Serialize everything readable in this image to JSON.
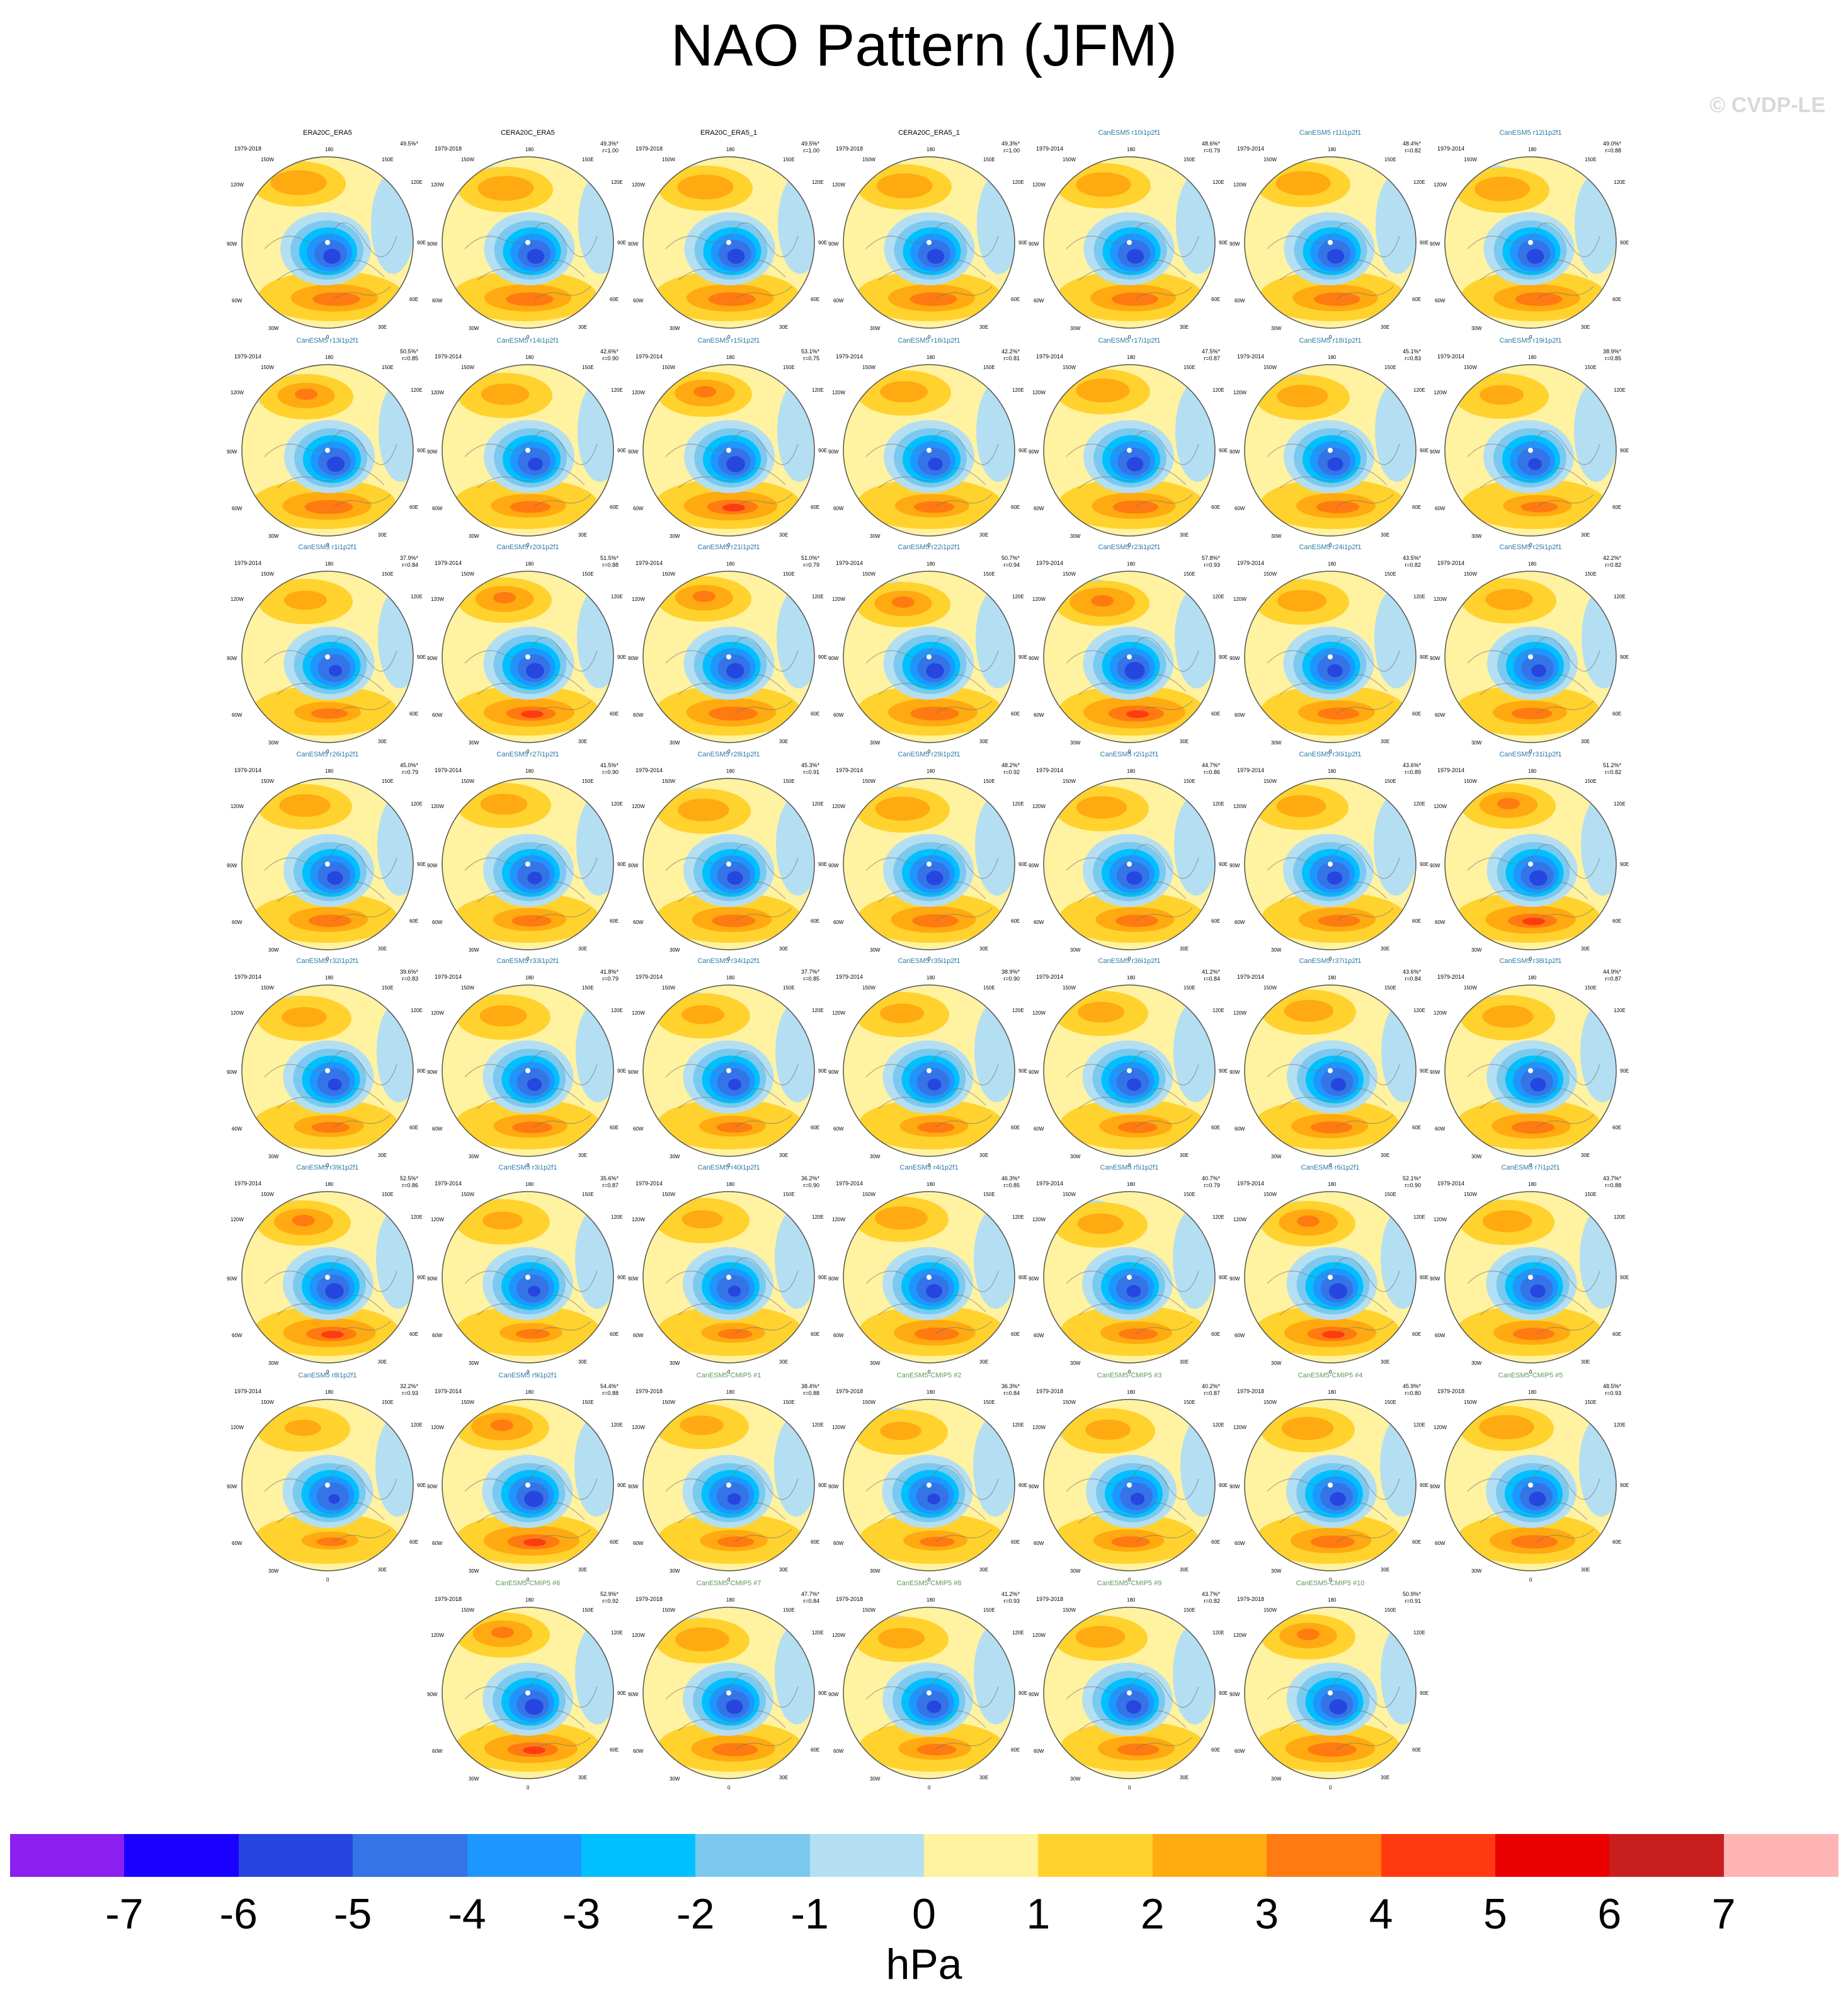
{
  "header": {
    "title": "NAO Pattern (JFM)",
    "watermark": "© CVDP-LE"
  },
  "colors": {
    "model_title": "#2a7aa6",
    "cmip_title": "#5a9a55",
    "obs_title": "#000000"
  },
  "chart_data": {
    "type": "heatmap",
    "title": "NAO Pattern (JFM)",
    "projection": "north polar stereographic",
    "lon_labels": [
      "180",
      "150E",
      "120E",
      "90E",
      "60E",
      "30E",
      "0",
      "30W",
      "60W",
      "90W",
      "120W",
      "150W"
    ],
    "colorbar": {
      "unit": "hPa",
      "ticks": [
        "-7",
        "-6",
        "-5",
        "-4",
        "-3",
        "-2",
        "-1",
        "0",
        "1",
        "2",
        "3",
        "4",
        "5",
        "6",
        "7"
      ],
      "colors": [
        "#8a1ff0",
        "#1a00ff",
        "#2646e0",
        "#3574e6",
        "#1e96ff",
        "#00c0ff",
        "#7cc9ef",
        "#b4dff2",
        "#fff2a0",
        "#ffd22e",
        "#ffaa10",
        "#ff7a10",
        "#ff3a10",
        "#ea0000",
        "#c81e1e",
        "#ffb4b4"
      ]
    },
    "panels": [
      {
        "title": "ERA20C_ERA5",
        "years": "1979-2018",
        "pct": "49.5%*",
        "r": "",
        "type": "obs"
      },
      {
        "title": "CERA20C_ERA5",
        "years": "1979-2018",
        "pct": "49.3%*",
        "r": "r=1.00",
        "type": "obs"
      },
      {
        "title": "ERA20C_ERA5_1",
        "years": "1979-2018",
        "pct": "49.5%*",
        "r": "r=1.00",
        "type": "obs"
      },
      {
        "title": "CERA20C_ERA5_1",
        "years": "1979-2018",
        "pct": "49.3%*",
        "r": "r=1.00",
        "type": "obs"
      },
      {
        "title": "CanESM5 r10i1p2f1",
        "years": "1979-2014",
        "pct": "48.6%*",
        "r": "r=0.79",
        "type": "model"
      },
      {
        "title": "CanESM5 r11i1p2f1",
        "years": "1979-2014",
        "pct": "48.4%*",
        "r": "r=0.82",
        "type": "model"
      },
      {
        "title": "CanESM5 r12i1p2f1",
        "years": "1979-2014",
        "pct": "49.0%*",
        "r": "r=0.88",
        "type": "model"
      },
      {
        "title": "CanESM5 r13i1p2f1",
        "years": "1979-2014",
        "pct": "50.5%*",
        "r": "r=0.85",
        "type": "model"
      },
      {
        "title": "CanESM5 r14i1p2f1",
        "years": "1979-2014",
        "pct": "42.6%*",
        "r": "r=0.90",
        "type": "model"
      },
      {
        "title": "CanESM5 r15i1p2f1",
        "years": "1979-2014",
        "pct": "53.1%*",
        "r": "r=0.75",
        "type": "model"
      },
      {
        "title": "CanESM5 r16i1p2f1",
        "years": "1979-2014",
        "pct": "42.2%*",
        "r": "r=0.81",
        "type": "model"
      },
      {
        "title": "CanESM5 r17i1p2f1",
        "years": "1979-2014",
        "pct": "47.5%*",
        "r": "r=0.87",
        "type": "model"
      },
      {
        "title": "CanESM5 r18i1p2f1",
        "years": "1979-2014",
        "pct": "45.1%*",
        "r": "r=0.83",
        "type": "model"
      },
      {
        "title": "CanESM5 r19i1p2f1",
        "years": "1979-2014",
        "pct": "38.9%*",
        "r": "r=0.85",
        "type": "model"
      },
      {
        "title": "CanESM5 r1i1p2f1",
        "years": "1979-2014",
        "pct": "37.9%*",
        "r": "r=0.84",
        "type": "model"
      },
      {
        "title": "CanESM5 r20i1p2f1",
        "years": "1979-2014",
        "pct": "51.5%*",
        "r": "r=0.88",
        "type": "model"
      },
      {
        "title": "CanESM5 r21i1p2f1",
        "years": "1979-2014",
        "pct": "51.0%*",
        "r": "r=0.79",
        "type": "model"
      },
      {
        "title": "CanESM5 r22i1p2f1",
        "years": "1979-2014",
        "pct": "50.7%*",
        "r": "r=0.94",
        "type": "model"
      },
      {
        "title": "CanESM5 r23i1p2f1",
        "years": "1979-2014",
        "pct": "57.8%*",
        "r": "r=0.93",
        "type": "model"
      },
      {
        "title": "CanESM5 r24i1p2f1",
        "years": "1979-2014",
        "pct": "43.5%*",
        "r": "r=0.82",
        "type": "model"
      },
      {
        "title": "CanESM5 r25i1p2f1",
        "years": "1979-2014",
        "pct": "42.2%*",
        "r": "r=0.82",
        "type": "model"
      },
      {
        "title": "CanESM5 r26i1p2f1",
        "years": "1979-2014",
        "pct": "45.0%*",
        "r": "r=0.79",
        "type": "model"
      },
      {
        "title": "CanESM5 r27i1p2f1",
        "years": "1979-2014",
        "pct": "41.5%*",
        "r": "r=0.90",
        "type": "model"
      },
      {
        "title": "CanESM5 r28i1p2f1",
        "years": "1979-2014",
        "pct": "45.3%*",
        "r": "r=0.91",
        "type": "model"
      },
      {
        "title": "CanESM5 r29i1p2f1",
        "years": "1979-2014",
        "pct": "48.2%*",
        "r": "r=0.92",
        "type": "model"
      },
      {
        "title": "CanESM5 r2i1p2f1",
        "years": "1979-2014",
        "pct": "44.7%*",
        "r": "r=0.86",
        "type": "model"
      },
      {
        "title": "CanESM5 r30i1p2f1",
        "years": "1979-2014",
        "pct": "43.6%*",
        "r": "r=0.89",
        "type": "model"
      },
      {
        "title": "CanESM5 r31i1p2f1",
        "years": "1979-2014",
        "pct": "51.2%*",
        "r": "r=0.82",
        "type": "model"
      },
      {
        "title": "CanESM5 r32i1p2f1",
        "years": "1979-2014",
        "pct": "39.6%*",
        "r": "r=0.83",
        "type": "model"
      },
      {
        "title": "CanESM5 r33i1p2f1",
        "years": "1979-2014",
        "pct": "41.8%*",
        "r": "r=0.79",
        "type": "model"
      },
      {
        "title": "CanESM5 r34i1p2f1",
        "years": "1979-2014",
        "pct": "37.7%*",
        "r": "r=0.85",
        "type": "model"
      },
      {
        "title": "CanESM5 r35i1p2f1",
        "years": "1979-2014",
        "pct": "38.9%*",
        "r": "r=0.90",
        "type": "model"
      },
      {
        "title": "CanESM5 r36i1p2f1",
        "years": "1979-2014",
        "pct": "41.2%*",
        "r": "r=0.84",
        "type": "model"
      },
      {
        "title": "CanESM5 r37i1p2f1",
        "years": "1979-2014",
        "pct": "43.6%*",
        "r": "r=0.84",
        "type": "model"
      },
      {
        "title": "CanESM5 r38i1p2f1",
        "years": "1979-2014",
        "pct": "44.9%*",
        "r": "r=0.87",
        "type": "model"
      },
      {
        "title": "CanESM5 r39i1p2f1",
        "years": "1979-2014",
        "pct": "52.5%*",
        "r": "r=0.86",
        "type": "model"
      },
      {
        "title": "CanESM5 r3i1p2f1",
        "years": "1979-2014",
        "pct": "35.6%*",
        "r": "r=0.87",
        "type": "model"
      },
      {
        "title": "CanESM5 r40i1p2f1",
        "years": "1979-2014",
        "pct": "36.2%*",
        "r": "r=0.90",
        "type": "model"
      },
      {
        "title": "CanESM5 r4i1p2f1",
        "years": "1979-2014",
        "pct": "46.3%*",
        "r": "r=0.85",
        "type": "model"
      },
      {
        "title": "CanESM5 r5i1p2f1",
        "years": "1979-2014",
        "pct": "40.7%*",
        "r": "r=0.79",
        "type": "model"
      },
      {
        "title": "CanESM5 r6i1p2f1",
        "years": "1979-2014",
        "pct": "52.1%*",
        "r": "r=0.90",
        "type": "model"
      },
      {
        "title": "CanESM5 r7i1p2f1",
        "years": "1979-2014",
        "pct": "43.7%*",
        "r": "r=0.88",
        "type": "model"
      },
      {
        "title": "CanESM5 r8i1p2f1",
        "years": "1979-2014",
        "pct": "32.2%*",
        "r": "r=0.93",
        "type": "model"
      },
      {
        "title": "CanESM5 r9i1p2f1",
        "years": "1979-2014",
        "pct": "54.4%*",
        "r": "r=0.88",
        "type": "model"
      },
      {
        "title": "CanESM5-CMIP5 #1",
        "years": "1979-2018",
        "pct": "38.4%*",
        "r": "r=0.88",
        "type": "cmip"
      },
      {
        "title": "CanESM5-CMIP5 #2",
        "years": "1979-2018",
        "pct": "36.3%*",
        "r": "r=0.84",
        "type": "cmip"
      },
      {
        "title": "CanESM5-CMIP5 #3",
        "years": "1979-2018",
        "pct": "40.2%*",
        "r": "r=0.87",
        "type": "cmip"
      },
      {
        "title": "CanESM5-CMIP5 #4",
        "years": "1979-2018",
        "pct": "45.9%*",
        "r": "r=0.80",
        "type": "cmip"
      },
      {
        "title": "CanESM5-CMIP5 #5",
        "years": "1979-2018",
        "pct": "48.5%*",
        "r": "r=0.93",
        "type": "cmip"
      },
      {
        "title": "CanESM5-CMIP5 #6",
        "years": "1979-2018",
        "pct": "52.9%*",
        "r": "r=0.92",
        "type": "cmip"
      },
      {
        "title": "CanESM5-CMIP5 #7",
        "years": "1979-2018",
        "pct": "47.7%*",
        "r": "r=0.84",
        "type": "cmip"
      },
      {
        "title": "CanESM5-CMIP5 #8",
        "years": "1979-2018",
        "pct": "41.2%*",
        "r": "r=0.93",
        "type": "cmip"
      },
      {
        "title": "CanESM5-CMIP5 #9",
        "years": "1979-2018",
        "pct": "43.7%*",
        "r": "r=0.82",
        "type": "cmip"
      },
      {
        "title": "CanESM5-CMIP5 #10",
        "years": "1979-2018",
        "pct": "50.9%*",
        "r": "r=0.91",
        "type": "cmip"
      }
    ]
  }
}
